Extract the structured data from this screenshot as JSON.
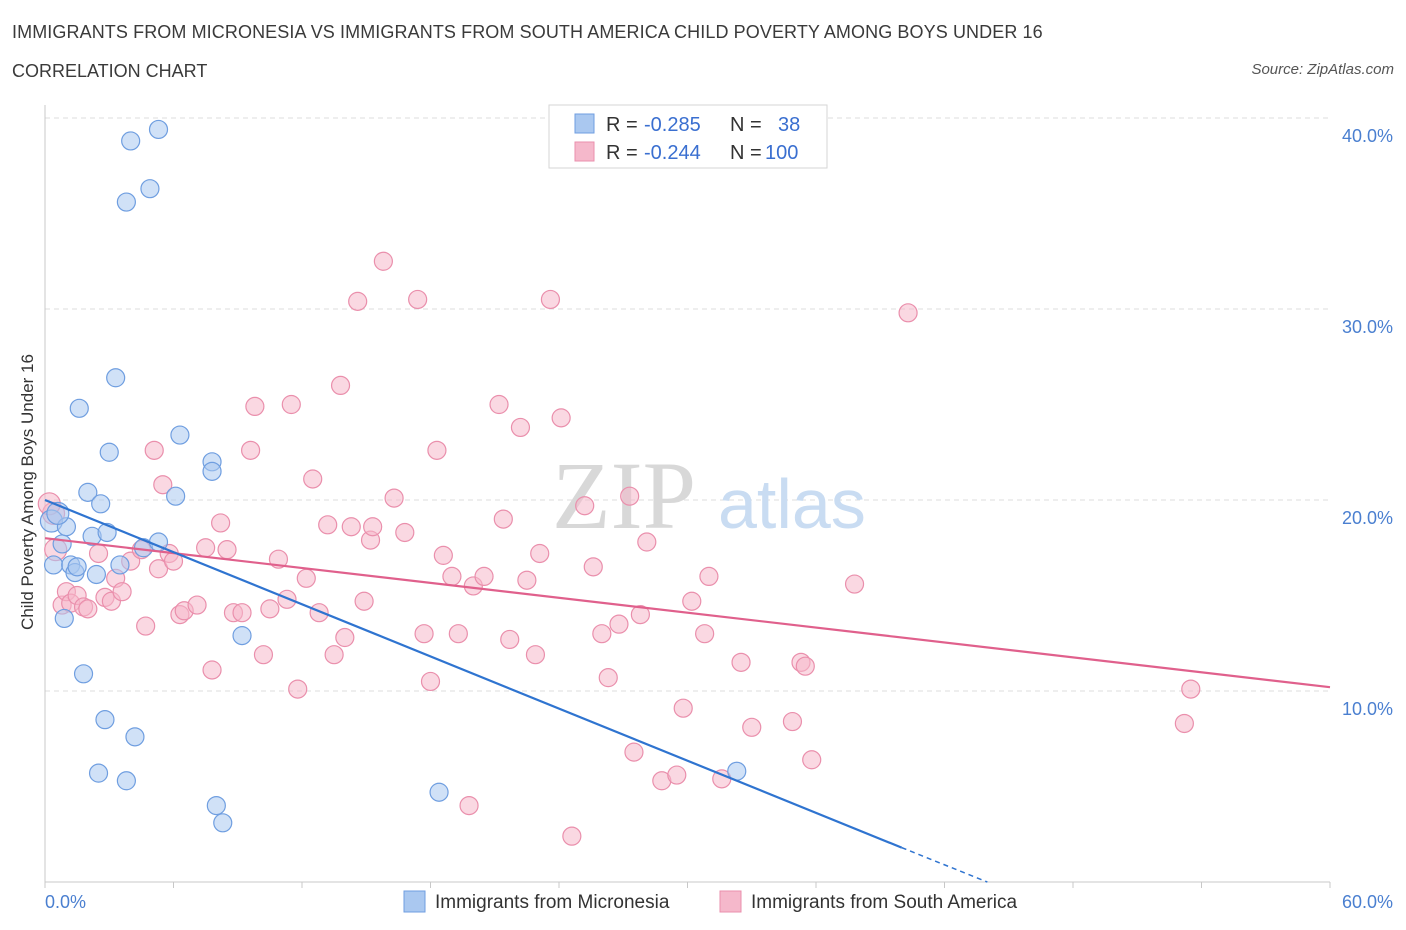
{
  "header": {
    "title": "IMMIGRANTS FROM MICRONESIA VS IMMIGRANTS FROM SOUTH AMERICA CHILD POVERTY AMONG BOYS UNDER 16",
    "subtitle": "CORRELATION CHART",
    "source": "Source: ZipAtlas.com"
  },
  "watermark": {
    "zip": "ZIP",
    "atlas": "atlas"
  },
  "colors": {
    "blue_fill": "#aac8f0",
    "blue_stroke": "#6f9ee0",
    "blue_line": "#2f74d0",
    "pink_fill": "#f5b8cb",
    "pink_stroke": "#ea8fac",
    "pink_line": "#e0608c",
    "tick_text": "#4a7fd0",
    "grid": "#dcdcdc"
  },
  "legend": {
    "rows": [
      {
        "r_label": "R = ",
        "r_value": "-0.285",
        "n_label": "N = ",
        "n_value": "38"
      },
      {
        "r_label": "R = ",
        "r_value": "-0.244",
        "n_label": "N = ",
        "n_value": "100"
      }
    ]
  },
  "chart_data": {
    "type": "scatter",
    "title": "IMMIGRANTS FROM MICRONESIA VS IMMIGRANTS FROM SOUTH AMERICA CHILD POVERTY AMONG BOYS UNDER 16",
    "xlabel": "",
    "ylabel": "Child Poverty Among Boys Under 16",
    "xlim": [
      0,
      60
    ],
    "ylim": [
      0,
      40
    ],
    "x_tick_labels": [
      "0.0%",
      "60.0%"
    ],
    "y_tick_labels": [
      "10.0%",
      "20.0%",
      "30.0%",
      "40.0%"
    ],
    "y_ticks": [
      10,
      20,
      30,
      40
    ],
    "grid": true,
    "legend_position": "bottom",
    "series": [
      {
        "name": "Immigrants from Micronesia",
        "R": -0.285,
        "N": 38,
        "trend": {
          "x0": 0,
          "y0": 20.0,
          "x1": 40.0,
          "y1": 1.8,
          "dash_to_x": 44,
          "dash_to_y": 0
        },
        "points": [
          [
            0.3,
            18.9
          ],
          [
            0.4,
            16.6
          ],
          [
            0.8,
            17.7
          ],
          [
            0.9,
            13.8
          ],
          [
            1.0,
            18.6
          ],
          [
            1.2,
            16.6
          ],
          [
            1.4,
            16.2
          ],
          [
            1.5,
            16.5
          ],
          [
            1.6,
            24.8
          ],
          [
            1.8,
            10.9
          ],
          [
            2.0,
            20.4
          ],
          [
            2.2,
            18.1
          ],
          [
            2.4,
            16.1
          ],
          [
            2.5,
            5.7
          ],
          [
            2.6,
            19.8
          ],
          [
            2.8,
            8.5
          ],
          [
            3.0,
            22.5
          ],
          [
            3.3,
            26.4
          ],
          [
            3.5,
            16.6
          ],
          [
            3.8,
            5.3
          ],
          [
            3.8,
            35.6
          ],
          [
            4.0,
            38.8
          ],
          [
            4.2,
            7.6
          ],
          [
            4.6,
            17.5
          ],
          [
            4.9,
            36.3
          ],
          [
            5.3,
            17.8
          ],
          [
            5.3,
            39.4
          ],
          [
            6.1,
            20.2
          ],
          [
            6.3,
            23.4
          ],
          [
            7.8,
            22.0
          ],
          [
            7.8,
            21.5
          ],
          [
            8.0,
            4.0
          ],
          [
            8.3,
            3.1
          ],
          [
            9.2,
            12.9
          ],
          [
            18.4,
            4.7
          ],
          [
            32.3,
            5.8
          ],
          [
            0.6,
            19.3
          ],
          [
            2.9,
            18.3
          ]
        ]
      },
      {
        "name": "Immigrants from South America",
        "R": -0.244,
        "N": 100,
        "trend": {
          "x0": 0,
          "y0": 18.0,
          "x1": 60,
          "y1": 10.2
        },
        "points": [
          [
            0.4,
            19.3
          ],
          [
            0.5,
            17.4
          ],
          [
            0.8,
            14.5
          ],
          [
            1.0,
            15.2
          ],
          [
            1.2,
            14.6
          ],
          [
            1.5,
            15.0
          ],
          [
            1.8,
            14.4
          ],
          [
            2.0,
            14.3
          ],
          [
            2.5,
            17.2
          ],
          [
            2.8,
            14.9
          ],
          [
            3.1,
            14.7
          ],
          [
            3.3,
            15.9
          ],
          [
            3.6,
            15.2
          ],
          [
            4.0,
            16.8
          ],
          [
            4.5,
            17.4
          ],
          [
            4.7,
            13.4
          ],
          [
            5.1,
            22.6
          ],
          [
            5.3,
            16.4
          ],
          [
            5.5,
            20.8
          ],
          [
            5.8,
            17.2
          ],
          [
            6.0,
            16.8
          ],
          [
            6.3,
            14.0
          ],
          [
            6.5,
            14.2
          ],
          [
            7.1,
            14.5
          ],
          [
            7.5,
            17.5
          ],
          [
            7.8,
            11.1
          ],
          [
            8.2,
            18.8
          ],
          [
            8.5,
            17.4
          ],
          [
            8.8,
            14.1
          ],
          [
            9.2,
            14.1
          ],
          [
            9.6,
            22.6
          ],
          [
            9.8,
            24.9
          ],
          [
            10.2,
            11.9
          ],
          [
            10.5,
            14.3
          ],
          [
            10.9,
            16.9
          ],
          [
            11.3,
            14.8
          ],
          [
            11.5,
            25.0
          ],
          [
            11.8,
            10.1
          ],
          [
            12.2,
            15.9
          ],
          [
            12.5,
            21.1
          ],
          [
            12.8,
            14.1
          ],
          [
            13.2,
            18.7
          ],
          [
            13.5,
            11.9
          ],
          [
            13.8,
            26.0
          ],
          [
            14.0,
            12.8
          ],
          [
            14.3,
            18.6
          ],
          [
            14.6,
            30.4
          ],
          [
            14.9,
            14.7
          ],
          [
            15.2,
            17.9
          ],
          [
            15.3,
            18.6
          ],
          [
            15.8,
            32.5
          ],
          [
            16.3,
            20.1
          ],
          [
            16.8,
            18.3
          ],
          [
            17.4,
            30.5
          ],
          [
            17.7,
            13.0
          ],
          [
            18.0,
            10.5
          ],
          [
            18.3,
            22.6
          ],
          [
            18.6,
            17.1
          ],
          [
            19.0,
            16.0
          ],
          [
            19.3,
            13.0
          ],
          [
            19.8,
            4.0
          ],
          [
            20.0,
            15.5
          ],
          [
            20.5,
            16.0
          ],
          [
            21.2,
            25.0
          ],
          [
            21.4,
            19.0
          ],
          [
            21.7,
            12.7
          ],
          [
            22.2,
            23.8
          ],
          [
            22.5,
            15.8
          ],
          [
            22.9,
            11.9
          ],
          [
            23.1,
            17.2
          ],
          [
            23.6,
            30.5
          ],
          [
            24.1,
            24.3
          ],
          [
            24.6,
            2.4
          ],
          [
            25.2,
            19.7
          ],
          [
            25.6,
            16.5
          ],
          [
            26.0,
            13.0
          ],
          [
            26.3,
            10.7
          ],
          [
            26.8,
            13.5
          ],
          [
            27.3,
            20.2
          ],
          [
            27.5,
            6.8
          ],
          [
            27.8,
            14.0
          ],
          [
            28.1,
            17.8
          ],
          [
            28.8,
            5.3
          ],
          [
            29.5,
            5.6
          ],
          [
            29.8,
            9.1
          ],
          [
            30.2,
            14.7
          ],
          [
            30.8,
            13.0
          ],
          [
            31.0,
            16.0
          ],
          [
            31.6,
            5.4
          ],
          [
            32.5,
            11.5
          ],
          [
            33.0,
            8.1
          ],
          [
            34.9,
            8.4
          ],
          [
            35.3,
            11.5
          ],
          [
            35.5,
            11.3
          ],
          [
            35.8,
            6.4
          ],
          [
            37.8,
            15.6
          ],
          [
            40.3,
            29.8
          ],
          [
            53.2,
            8.3
          ],
          [
            53.5,
            10.1
          ],
          [
            0.2,
            19.8
          ]
        ]
      }
    ]
  }
}
